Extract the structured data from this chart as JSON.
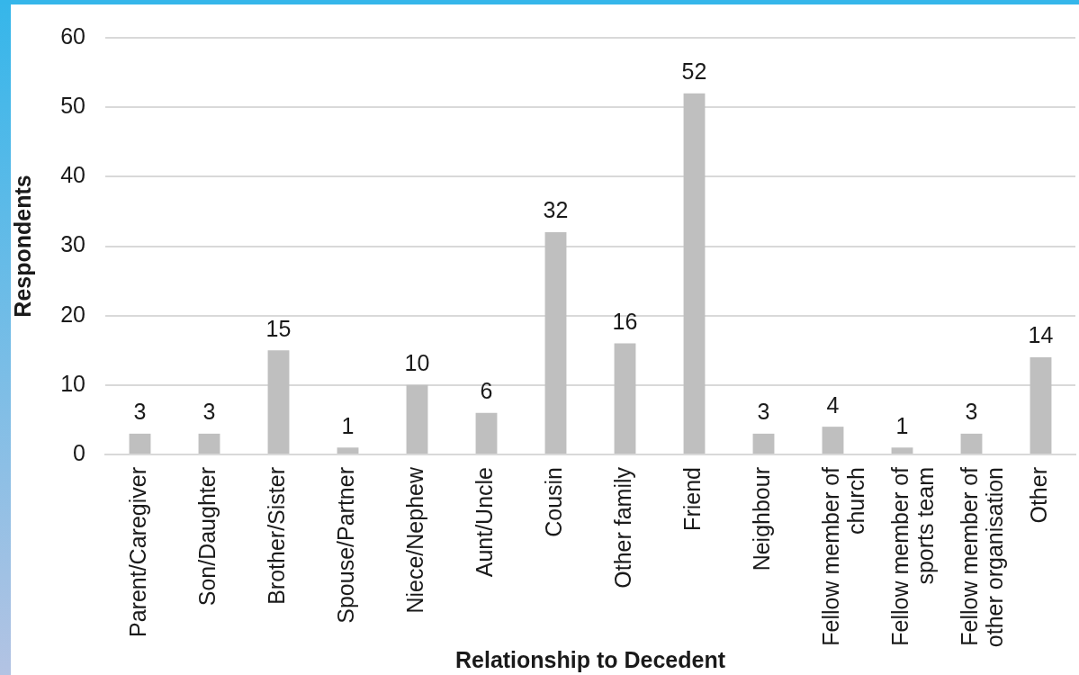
{
  "chart_data": {
    "type": "bar",
    "xlabel": "Relationship to Decedent",
    "ylabel": "Respondents",
    "categories": [
      "Parent/Caregiver",
      "Son/Daughter",
      "Brother/Sister",
      "Spouse/Partner",
      "Niece/Nephew",
      "Aunt/Uncle",
      "Cousin",
      "Other family",
      "Friend",
      "Neighbour",
      "Fellow member of church",
      "Fellow member of sports team",
      "Fellow member of other organisation",
      "Other"
    ],
    "values": [
      3,
      3,
      15,
      1,
      10,
      6,
      32,
      16,
      52,
      3,
      4,
      1,
      3,
      14
    ],
    "color": "#bfbfbf",
    "ylim": [
      0,
      60
    ],
    "yticks": [
      0,
      10,
      20,
      30,
      40,
      50,
      60
    ],
    "grid": "y",
    "data_labels": true
  }
}
